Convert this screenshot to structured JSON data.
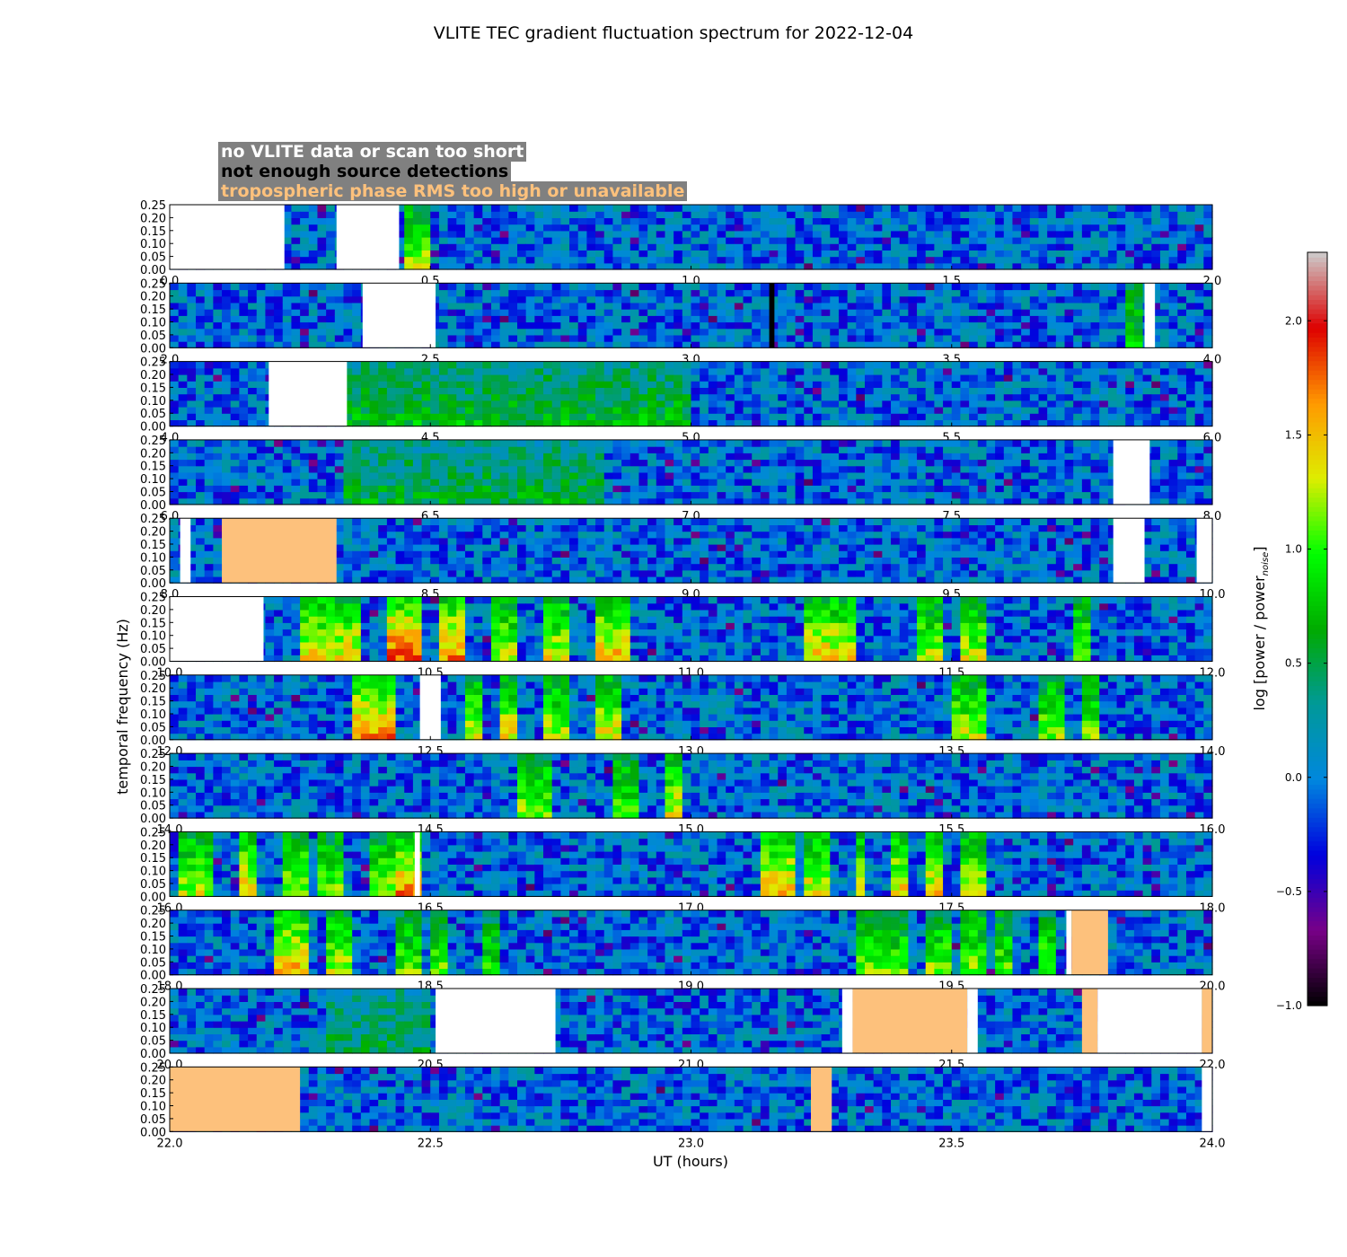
{
  "chart_data": {
    "type": "heatmap",
    "title": "VLITE TEC gradient fluctuation spectrum for 2022-12-04",
    "xlabel": "UT (hours)",
    "ylabel": "temporal frequency (Hz)",
    "ylim": [
      0,
      0.25
    ],
    "yticks": [
      "0.00",
      "0.05",
      "0.10",
      "0.15",
      "0.20",
      "0.25"
    ],
    "colorbar": {
      "label": "log [power / power",
      "label_sub": "noise",
      "label_end": "]",
      "range": [
        -1.0,
        2.3
      ],
      "ticks": [
        "−1.0",
        "−0.5",
        "0.0",
        "0.5",
        "1.0",
        "1.5",
        "2.0"
      ],
      "tick_values": [
        -1.0,
        -0.5,
        0.0,
        0.5,
        1.0,
        1.5,
        2.0
      ],
      "colormap": "nipy_spectral"
    },
    "legend": [
      {
        "text": "no VLITE data or scan too short",
        "color": "#ffffff"
      },
      {
        "text": "not enough source detections",
        "color": "#000000"
      },
      {
        "text": "tropospheric phase RMS too high or unavailable",
        "color": "#fdc17c"
      }
    ],
    "flag_colors": {
      "nodata": "#ffffff",
      "nodetect": "#000000",
      "tropo": "#fdc17c"
    },
    "panels": [
      {
        "range": [
          0,
          2
        ],
        "ticks": [
          "0.0",
          "0.5",
          "1.0",
          "1.5",
          "2.0"
        ],
        "flags": [
          {
            "s": 0.0,
            "e": 0.22,
            "t": "nodata"
          },
          {
            "s": 0.32,
            "e": 0.44,
            "t": "nodata"
          }
        ],
        "activity": [
          {
            "s": 0.45,
            "e": 0.5,
            "lvl": 1.3
          }
        ]
      },
      {
        "range": [
          2,
          4
        ],
        "ticks": [
          "2.0",
          "2.5",
          "3.0",
          "3.5",
          "4.0"
        ],
        "flags": [
          {
            "s": 2.37,
            "e": 2.51,
            "t": "nodata"
          },
          {
            "s": 3.15,
            "e": 3.16,
            "t": "nodetect"
          },
          {
            "s": 3.87,
            "e": 3.89,
            "t": "nodata"
          }
        ],
        "activity": [
          {
            "s": 3.84,
            "e": 3.87,
            "lvl": 0.9
          }
        ]
      },
      {
        "range": [
          4,
          6
        ],
        "ticks": [
          "4.0",
          "4.5",
          "5.0",
          "5.5",
          "6.0"
        ],
        "flags": [
          {
            "s": 4.19,
            "e": 4.34,
            "t": "nodata"
          }
        ],
        "activity": [
          {
            "s": 4.34,
            "e": 5.0,
            "lvl": 0.7
          }
        ]
      },
      {
        "range": [
          6,
          8
        ],
        "ticks": [
          "6.0",
          "6.5",
          "7.0",
          "7.5",
          "8.0"
        ],
        "flags": [
          {
            "s": 7.81,
            "e": 7.88,
            "t": "nodata"
          }
        ],
        "activity": [
          {
            "s": 6.34,
            "e": 6.83,
            "lvl": 0.6
          }
        ]
      },
      {
        "range": [
          8,
          10
        ],
        "ticks": [
          "8.0",
          "8.5",
          "9.0",
          "9.5",
          "10.0"
        ],
        "flags": [
          {
            "s": 8.02,
            "e": 8.04,
            "t": "nodata"
          },
          {
            "s": 8.1,
            "e": 8.32,
            "t": "tropo"
          },
          {
            "s": 9.81,
            "e": 9.87,
            "t": "nodata"
          },
          {
            "s": 9.97,
            "e": 10.0,
            "t": "nodata"
          }
        ],
        "activity": []
      },
      {
        "range": [
          10,
          12
        ],
        "ticks": [
          "10.0",
          "10.5",
          "11.0",
          "11.5",
          "12.0"
        ],
        "flags": [
          {
            "s": 10.0,
            "e": 10.18,
            "t": "nodata"
          }
        ],
        "activity": [
          {
            "s": 10.25,
            "e": 10.37,
            "lvl": 1.5
          },
          {
            "s": 10.41,
            "e": 10.48,
            "lvl": 1.9
          },
          {
            "s": 10.52,
            "e": 10.57,
            "lvl": 1.7
          },
          {
            "s": 10.61,
            "e": 10.67,
            "lvl": 1.3
          },
          {
            "s": 10.71,
            "e": 10.77,
            "lvl": 1.4
          },
          {
            "s": 10.81,
            "e": 10.88,
            "lvl": 1.6
          },
          {
            "s": 11.22,
            "e": 11.31,
            "lvl": 1.5
          },
          {
            "s": 11.44,
            "e": 11.48,
            "lvl": 1.3
          },
          {
            "s": 11.52,
            "e": 11.56,
            "lvl": 1.3
          },
          {
            "s": 11.73,
            "e": 11.77,
            "lvl": 1.2
          }
        ]
      },
      {
        "range": [
          12,
          14
        ],
        "ticks": [
          "12.0",
          "12.5",
          "13.0",
          "13.5",
          "14.0"
        ],
        "flags": [
          {
            "s": 12.48,
            "e": 12.52,
            "t": "nodata"
          }
        ],
        "activity": [
          {
            "s": 12.35,
            "e": 12.43,
            "lvl": 1.7
          },
          {
            "s": 12.56,
            "e": 12.6,
            "lvl": 1.4
          },
          {
            "s": 12.63,
            "e": 12.67,
            "lvl": 1.4
          },
          {
            "s": 12.72,
            "e": 12.77,
            "lvl": 1.3
          },
          {
            "s": 12.82,
            "e": 12.87,
            "lvl": 1.4
          },
          {
            "s": 13.5,
            "e": 13.57,
            "lvl": 1.3
          },
          {
            "s": 13.67,
            "e": 13.71,
            "lvl": 1.2
          },
          {
            "s": 13.75,
            "e": 13.79,
            "lvl": 1.2
          }
        ]
      },
      {
        "range": [
          14,
          16
        ],
        "ticks": [
          "14.0",
          "14.5",
          "15.0",
          "15.5",
          "16.0"
        ],
        "flags": [],
        "activity": [
          {
            "s": 14.67,
            "e": 14.73,
            "lvl": 1.2
          },
          {
            "s": 14.85,
            "e": 14.9,
            "lvl": 1.1
          },
          {
            "s": 14.95,
            "e": 14.98,
            "lvl": 1.4
          }
        ]
      },
      {
        "range": [
          16,
          18
        ],
        "ticks": [
          "16.0",
          "16.5",
          "17.0",
          "17.5",
          "18.0"
        ],
        "flags": [
          {
            "s": 16.47,
            "e": 16.48,
            "t": "nodata"
          }
        ],
        "activity": [
          {
            "s": 16.02,
            "e": 16.08,
            "lvl": 1.3
          },
          {
            "s": 16.14,
            "e": 16.17,
            "lvl": 1.5
          },
          {
            "s": 16.21,
            "e": 16.27,
            "lvl": 1.3
          },
          {
            "s": 16.28,
            "e": 16.33,
            "lvl": 1.2
          },
          {
            "s": 16.38,
            "e": 16.43,
            "lvl": 1.2
          },
          {
            "s": 16.44,
            "e": 16.48,
            "lvl": 1.7
          },
          {
            "s": 17.13,
            "e": 17.2,
            "lvl": 1.6
          },
          {
            "s": 17.22,
            "e": 17.27,
            "lvl": 1.4
          },
          {
            "s": 17.31,
            "e": 17.34,
            "lvl": 1.4
          },
          {
            "s": 17.38,
            "e": 17.42,
            "lvl": 1.5
          },
          {
            "s": 17.45,
            "e": 17.49,
            "lvl": 1.5
          },
          {
            "s": 17.52,
            "e": 17.56,
            "lvl": 1.4
          }
        ]
      },
      {
        "range": [
          18,
          20
        ],
        "ticks": [
          "18.0",
          "18.5",
          "19.0",
          "19.5",
          "20.0"
        ],
        "flags": [
          {
            "s": 19.72,
            "e": 19.73,
            "t": "nodata"
          },
          {
            "s": 19.73,
            "e": 19.8,
            "t": "tropo"
          }
        ],
        "activity": [
          {
            "s": 18.2,
            "e": 18.27,
            "lvl": 1.6
          },
          {
            "s": 18.3,
            "e": 18.35,
            "lvl": 1.3
          },
          {
            "s": 18.44,
            "e": 18.49,
            "lvl": 1.1
          },
          {
            "s": 18.5,
            "e": 18.54,
            "lvl": 1.1
          },
          {
            "s": 18.6,
            "e": 18.64,
            "lvl": 1.0
          },
          {
            "s": 19.32,
            "e": 19.36,
            "lvl": 1.1
          },
          {
            "s": 19.37,
            "e": 19.42,
            "lvl": 1.1
          },
          {
            "s": 19.45,
            "e": 19.5,
            "lvl": 1.2
          },
          {
            "s": 19.52,
            "e": 19.57,
            "lvl": 1.2
          },
          {
            "s": 19.58,
            "e": 19.62,
            "lvl": 1.1
          },
          {
            "s": 19.66,
            "e": 19.7,
            "lvl": 1.1
          }
        ]
      },
      {
        "range": [
          20,
          22
        ],
        "ticks": [
          "20.0",
          "20.5",
          "21.0",
          "21.5",
          "22.0"
        ],
        "flags": [
          {
            "s": 20.51,
            "e": 20.74,
            "t": "nodata"
          },
          {
            "s": 21.29,
            "e": 21.31,
            "t": "nodata"
          },
          {
            "s": 21.31,
            "e": 21.53,
            "t": "tropo"
          },
          {
            "s": 21.53,
            "e": 21.55,
            "t": "nodata"
          },
          {
            "s": 21.75,
            "e": 21.78,
            "t": "tropo"
          },
          {
            "s": 21.78,
            "e": 21.98,
            "t": "nodata"
          },
          {
            "s": 21.98,
            "e": 22.0,
            "t": "tropo"
          }
        ],
        "activity": [
          {
            "s": 20.3,
            "e": 20.5,
            "lvl": 0.5
          }
        ]
      },
      {
        "range": [
          22,
          24
        ],
        "ticks": [
          "22.0",
          "22.5",
          "23.0",
          "23.5",
          "24.0"
        ],
        "flags": [
          {
            "s": 22.0,
            "e": 22.25,
            "t": "tropo"
          },
          {
            "s": 23.23,
            "e": 23.27,
            "t": "tropo"
          },
          {
            "s": 23.98,
            "e": 24.0,
            "t": "nodata"
          }
        ],
        "activity": []
      }
    ]
  }
}
